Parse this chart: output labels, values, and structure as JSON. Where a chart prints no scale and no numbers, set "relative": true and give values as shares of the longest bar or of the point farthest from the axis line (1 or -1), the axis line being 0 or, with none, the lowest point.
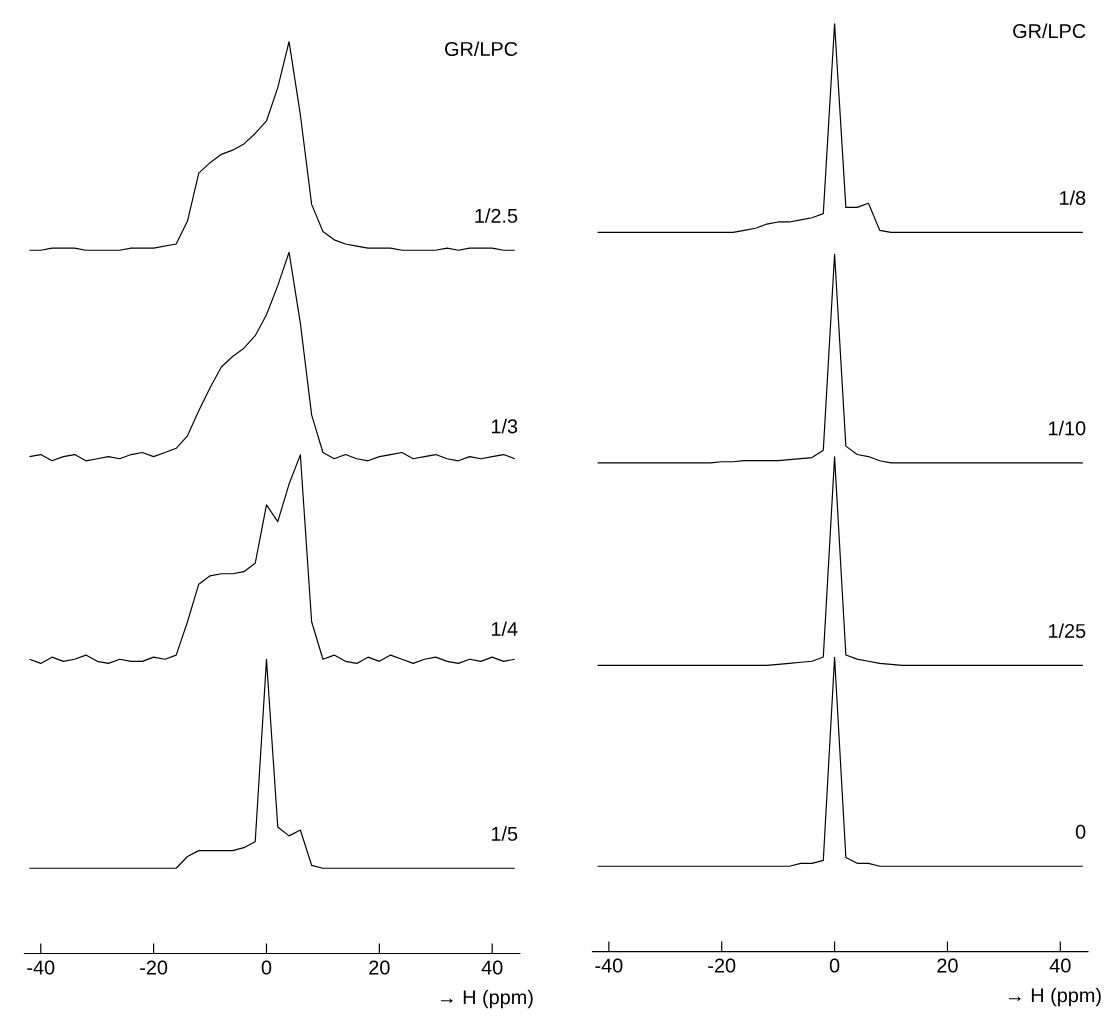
{
  "chart_data": [
    {
      "type": "line",
      "title": "GR/LPC",
      "annotations": [
        "1/2.5"
      ],
      "relative": true,
      "color": "#000000",
      "tick_labels": false,
      "categories": [
        null,
        null,
        null,
        null,
        null,
        null,
        null,
        null,
        null,
        null,
        null,
        null,
        null,
        null,
        null,
        null,
        null,
        null,
        null,
        null,
        null,
        null,
        null,
        null,
        null,
        null,
        null,
        null,
        null,
        null,
        null,
        null,
        null,
        null,
        null,
        null,
        null,
        null,
        null,
        null,
        null,
        null,
        null,
        null
      ],
      "values": [
        0,
        0,
        0.01,
        0.01,
        0.01,
        0,
        0,
        0,
        0,
        0.01,
        0.01,
        0.01,
        0.02,
        0.03,
        0.14,
        0.37,
        0.42,
        0.46,
        0.48,
        0.51,
        0.56,
        0.62,
        0.78,
        1,
        0.65,
        0.22,
        0.09,
        0.05,
        0.03,
        0.02,
        0.01,
        0.01,
        0.01,
        0,
        0,
        0,
        0,
        0.01,
        0,
        0.01,
        0.01,
        0.01,
        0,
        0
      ]
    },
    {
      "type": "line",
      "annotations": [
        "1/3"
      ],
      "relative": true,
      "color": "#000000",
      "tick_labels": false,
      "categories": [
        null,
        null,
        null,
        null,
        null,
        null,
        null,
        null,
        null,
        null,
        null,
        null,
        null,
        null,
        null,
        null,
        null,
        null,
        null,
        null,
        null,
        null,
        null,
        null,
        null,
        null,
        null,
        null,
        null,
        null,
        null,
        null,
        null,
        null,
        null,
        null,
        null,
        null,
        null,
        null,
        null,
        null,
        null,
        null
      ],
      "values": [
        0.02,
        0.03,
        0,
        0.02,
        0.03,
        0,
        0.01,
        0.02,
        0.01,
        0.03,
        0.04,
        0.02,
        0.04,
        0.06,
        0.12,
        0.24,
        0.35,
        0.45,
        0.5,
        0.54,
        0.6,
        0.7,
        0.84,
        1,
        0.66,
        0.22,
        0.04,
        0.01,
        0.03,
        0.01,
        0,
        0.02,
        0.03,
        0.04,
        0.01,
        0.02,
        0.03,
        0.01,
        0,
        0.02,
        0.01,
        0.02,
        0.03,
        0.01
      ]
    },
    {
      "type": "line",
      "annotations": [
        "1/4"
      ],
      "relative": true,
      "color": "#000000",
      "tick_labels": false,
      "categories": [
        null,
        null,
        null,
        null,
        null,
        null,
        null,
        null,
        null,
        null,
        null,
        null,
        null,
        null,
        null,
        null,
        null,
        null,
        null,
        null,
        null,
        null,
        null,
        null,
        null,
        null,
        null,
        null,
        null,
        null,
        null,
        null,
        null,
        null,
        null,
        null,
        null,
        null,
        null,
        null,
        null,
        null,
        null,
        null
      ],
      "values": [
        0.02,
        0,
        0.03,
        0.01,
        0.02,
        0.04,
        0.01,
        0,
        0.02,
        0.01,
        0.01,
        0.03,
        0.02,
        0.04,
        0.2,
        0.38,
        0.42,
        0.43,
        0.43,
        0.44,
        0.48,
        0.76,
        0.68,
        0.86,
        1,
        0.2,
        0.02,
        0.04,
        0.01,
        0,
        0.03,
        0.01,
        0.04,
        0.02,
        0,
        0.02,
        0.03,
        0.01,
        0,
        0.02,
        0.01,
        0.03,
        0.01,
        0.02
      ]
    },
    {
      "type": "line",
      "annotations": [
        "1/5"
      ],
      "relative": true,
      "color": "#000000",
      "tick_labels": "x",
      "xlim": [
        -43,
        45
      ],
      "xticks": [
        -40,
        -20,
        0,
        20,
        40
      ],
      "xlabel": "→ H (ppm)",
      "x": [
        -42,
        -40,
        -38,
        -36,
        -34,
        -32,
        -30,
        -28,
        -26,
        -24,
        -22,
        -20,
        -18,
        -16,
        -14,
        -12,
        -10,
        -8,
        -6,
        -4,
        -2,
        0,
        2,
        4,
        6,
        8,
        10,
        12,
        14,
        16,
        18,
        20,
        22,
        24,
        26,
        28,
        30,
        32,
        34,
        36,
        38,
        40,
        42,
        44
      ],
      "values": [
        0.29,
        0.29,
        0.29,
        0.29,
        0.29,
        0.29,
        0.29,
        0.29,
        0.29,
        0.29,
        0.29,
        0.29,
        0.29,
        0.29,
        0.33,
        0.35,
        0.35,
        0.35,
        0.35,
        0.36,
        0.38,
        1,
        0.43,
        0.4,
        0.42,
        0.3,
        0.29,
        0.29,
        0.29,
        0.29,
        0.29,
        0.29,
        0.29,
        0.29,
        0.29,
        0.29,
        0.29,
        0.29,
        0.29,
        0.29,
        0.29,
        0.29,
        0.29,
        0.29
      ]
    },
    {
      "type": "line",
      "title": "GR/LPC",
      "annotations": [
        "1/8"
      ],
      "relative": true,
      "color": "#000000",
      "tick_labels": false,
      "categories": [
        null,
        null,
        null,
        null,
        null,
        null,
        null,
        null,
        null,
        null,
        null,
        null,
        null,
        null,
        null,
        null,
        null,
        null,
        null,
        null,
        null,
        null,
        null,
        null,
        null,
        null,
        null,
        null,
        null,
        null,
        null,
        null,
        null,
        null,
        null,
        null,
        null,
        null,
        null,
        null,
        null,
        null,
        null,
        null
      ],
      "values": [
        0,
        0,
        0,
        0,
        0,
        0,
        0,
        0,
        0,
        0,
        0,
        0,
        0,
        0.01,
        0.02,
        0.04,
        0.05,
        0.05,
        0.06,
        0.07,
        0.09,
        1,
        0.12,
        0.12,
        0.14,
        0.01,
        0,
        0,
        0,
        0,
        0,
        0,
        0,
        0,
        0,
        0,
        0,
        0,
        0,
        0,
        0,
        0,
        0,
        0
      ]
    },
    {
      "type": "line",
      "annotations": [
        "1/10"
      ],
      "relative": true,
      "color": "#000000",
      "tick_labels": false,
      "categories": [
        null,
        null,
        null,
        null,
        null,
        null,
        null,
        null,
        null,
        null,
        null,
        null,
        null,
        null,
        null,
        null,
        null,
        null,
        null,
        null,
        null,
        null,
        null,
        null,
        null,
        null,
        null,
        null,
        null,
        null,
        null,
        null,
        null,
        null,
        null,
        null,
        null,
        null,
        null,
        null,
        null,
        null,
        null,
        null
      ],
      "values": [
        0,
        0,
        0,
        0,
        0,
        0,
        0,
        0,
        0,
        0,
        0,
        0.005,
        0.005,
        0.01,
        0.01,
        0.01,
        0.01,
        0.015,
        0.02,
        0.025,
        0.06,
        1,
        0.08,
        0.04,
        0.03,
        0.01,
        0,
        0,
        0,
        0,
        0,
        0,
        0,
        0,
        0,
        0,
        0,
        0,
        0,
        0,
        0,
        0,
        0,
        0
      ]
    },
    {
      "type": "line",
      "annotations": [
        "1/25"
      ],
      "relative": true,
      "color": "#000000",
      "tick_labels": false,
      "categories": [
        null,
        null,
        null,
        null,
        null,
        null,
        null,
        null,
        null,
        null,
        null,
        null,
        null,
        null,
        null,
        null,
        null,
        null,
        null,
        null,
        null,
        null,
        null,
        null,
        null,
        null,
        null,
        null,
        null,
        null,
        null,
        null,
        null,
        null,
        null,
        null,
        null,
        null,
        null,
        null,
        null,
        null,
        null,
        null
      ],
      "values": [
        0,
        0,
        0,
        0,
        0,
        0,
        0,
        0,
        0,
        0,
        0,
        0,
        0,
        0,
        0,
        0,
        0.005,
        0.01,
        0.015,
        0.02,
        0.04,
        1,
        0.05,
        0.03,
        0.02,
        0.01,
        0.005,
        0,
        0,
        0,
        0,
        0,
        0,
        0,
        0,
        0,
        0,
        0,
        0,
        0,
        0,
        0,
        0,
        0
      ]
    },
    {
      "type": "line",
      "annotations": [
        "0"
      ],
      "relative": true,
      "color": "#000000",
      "tick_labels": "x",
      "xlim": [
        -43,
        45
      ],
      "xticks": [
        -40,
        -20,
        0,
        20,
        40
      ],
      "xlabel": "→ H (ppm)",
      "x": [
        -42,
        -40,
        -38,
        -36,
        -34,
        -32,
        -30,
        -28,
        -26,
        -24,
        -22,
        -20,
        -18,
        -16,
        -14,
        -12,
        -10,
        -8,
        -6,
        -4,
        -2,
        0,
        2,
        4,
        6,
        8,
        10,
        12,
        14,
        16,
        18,
        20,
        22,
        24,
        26,
        28,
        30,
        32,
        34,
        36,
        38,
        40,
        42,
        44
      ],
      "values": [
        0.29,
        0.29,
        0.29,
        0.29,
        0.29,
        0.29,
        0.29,
        0.29,
        0.29,
        0.29,
        0.29,
        0.29,
        0.29,
        0.29,
        0.29,
        0.29,
        0.29,
        0.29,
        0.3,
        0.3,
        0.31,
        1,
        0.32,
        0.3,
        0.3,
        0.29,
        0.29,
        0.29,
        0.29,
        0.29,
        0.29,
        0.29,
        0.29,
        0.29,
        0.29,
        0.29,
        0.29,
        0.29,
        0.29,
        0.29,
        0.29,
        0.29,
        0.29,
        0.29
      ]
    }
  ]
}
